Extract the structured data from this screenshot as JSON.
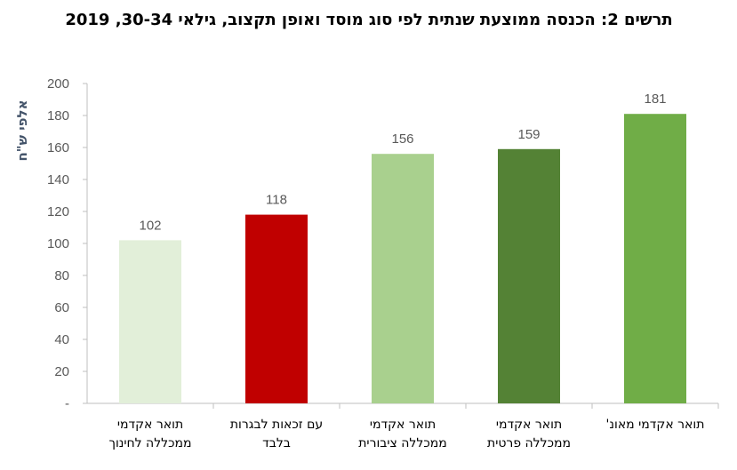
{
  "chart_data": {
    "type": "bar",
    "title": "תרשים 2: הכנסה ממוצעת שנתית לפי סוג מוסד ואופן תקצוב, גילאי 30-34, 2019",
    "xlabel": "",
    "ylabel": "אלפי ש\"ח",
    "ylim": [
      0,
      200
    ],
    "ytick_step": 20,
    "ytick_labels": [
      "-",
      "20",
      "40",
      "60",
      "80",
      "100",
      "120",
      "140",
      "160",
      "180",
      "200"
    ],
    "grid": false,
    "categories": [
      [
        "תואר אקדמי",
        "ממכללה לחינוך"
      ],
      [
        "עם זכאות לבגרות",
        "בלבד"
      ],
      [
        "תואר אקדמי",
        "ממכללה ציבורית"
      ],
      [
        "תואר אקדמי",
        "ממכללה פרטית"
      ],
      [
        "תואר אקדמי מאונ'"
      ]
    ],
    "values": [
      102,
      118,
      156,
      159,
      181
    ],
    "data_labels": [
      "102",
      "118",
      "156",
      "159",
      "181"
    ],
    "colors": [
      "#e2efd9",
      "#c00000",
      "#a9d08e",
      "#548235",
      "#70ad47"
    ]
  }
}
